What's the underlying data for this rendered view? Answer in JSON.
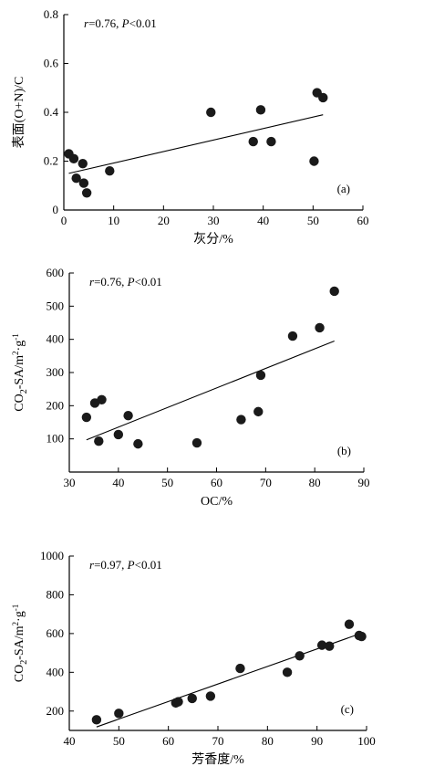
{
  "chart_data": [
    {
      "type": "scatter",
      "panel_label": "(a)",
      "annotation": "r=0.76, P<0.01",
      "xlabel": "灰分/%",
      "ylabel": "表面(O+N)/C",
      "xlim": [
        0,
        60
      ],
      "ylim": [
        0,
        0.8
      ],
      "xticks": [
        0,
        10,
        20,
        30,
        40,
        50,
        60
      ],
      "yticks": [
        0,
        0.2,
        0.4,
        0.6,
        0.8
      ],
      "ytick_labels": [
        "0",
        "0.2",
        "0.4",
        "0.6",
        "0.8"
      ],
      "points": [
        {
          "x": 1.0,
          "y": 0.23
        },
        {
          "x": 2.0,
          "y": 0.21
        },
        {
          "x": 2.5,
          "y": 0.13
        },
        {
          "x": 3.8,
          "y": 0.19
        },
        {
          "x": 4.0,
          "y": 0.11
        },
        {
          "x": 4.6,
          "y": 0.07
        },
        {
          "x": 9.2,
          "y": 0.16
        },
        {
          "x": 29.5,
          "y": 0.4
        },
        {
          "x": 38.0,
          "y": 0.28
        },
        {
          "x": 39.5,
          "y": 0.41
        },
        {
          "x": 41.6,
          "y": 0.28
        },
        {
          "x": 50.2,
          "y": 0.2
        },
        {
          "x": 50.8,
          "y": 0.48
        },
        {
          "x": 52.0,
          "y": 0.46
        }
      ],
      "fit_line": {
        "x": [
          1.0,
          52.0
        ],
        "y": [
          0.15,
          0.39
        ]
      }
    },
    {
      "type": "scatter",
      "panel_label": "(b)",
      "annotation": "r=0.76, P<0.01",
      "xlabel": "OC/%",
      "ylabel": "CO2-SA/m²·g⁻¹",
      "xlim": [
        30,
        90
      ],
      "ylim": [
        0,
        600
      ],
      "xticks": [
        30,
        40,
        50,
        60,
        70,
        80,
        90
      ],
      "yticks": [
        100,
        200,
        300,
        400,
        500,
        600
      ],
      "ytick_labels": [
        "100",
        "200",
        "300",
        "400",
        "500",
        "600"
      ],
      "points": [
        {
          "x": 33.5,
          "y": 165
        },
        {
          "x": 35.2,
          "y": 208
        },
        {
          "x": 36.0,
          "y": 93
        },
        {
          "x": 36.6,
          "y": 218
        },
        {
          "x": 40.0,
          "y": 113
        },
        {
          "x": 42.0,
          "y": 170
        },
        {
          "x": 44.0,
          "y": 85
        },
        {
          "x": 56.0,
          "y": 88
        },
        {
          "x": 65.0,
          "y": 158
        },
        {
          "x": 68.5,
          "y": 182
        },
        {
          "x": 69.0,
          "y": 292
        },
        {
          "x": 75.5,
          "y": 410
        },
        {
          "x": 81.0,
          "y": 435
        },
        {
          "x": 84.0,
          "y": 545
        }
      ],
      "fit_line": {
        "x": [
          33.5,
          84.0
        ],
        "y": [
          97,
          395
        ]
      }
    },
    {
      "type": "scatter",
      "panel_label": "(c)",
      "annotation": "r=0.97, P<0.01",
      "xlabel": "芳香度/%",
      "ylabel": "CO2-SA/m²·g⁻¹",
      "xlim": [
        40,
        100
      ],
      "ylim": [
        100,
        1000
      ],
      "xticks": [
        40,
        50,
        60,
        70,
        80,
        90,
        100
      ],
      "yticks": [
        200,
        400,
        600,
        800,
        1000
      ],
      "ytick_labels": [
        "200",
        "400",
        "600",
        "800",
        "1000"
      ],
      "points": [
        {
          "x": 45.5,
          "y": 155
        },
        {
          "x": 50.0,
          "y": 188
        },
        {
          "x": 61.5,
          "y": 242
        },
        {
          "x": 62.0,
          "y": 248
        },
        {
          "x": 64.8,
          "y": 265
        },
        {
          "x": 68.5,
          "y": 277
        },
        {
          "x": 74.5,
          "y": 420
        },
        {
          "x": 84.0,
          "y": 400
        },
        {
          "x": 86.5,
          "y": 485
        },
        {
          "x": 91.0,
          "y": 540
        },
        {
          "x": 92.5,
          "y": 535
        },
        {
          "x": 96.5,
          "y": 648
        },
        {
          "x": 98.5,
          "y": 590
        },
        {
          "x": 99.0,
          "y": 585
        }
      ],
      "fit_line": {
        "x": [
          45.5,
          99.0
        ],
        "y": [
          118,
          602
        ]
      }
    }
  ]
}
